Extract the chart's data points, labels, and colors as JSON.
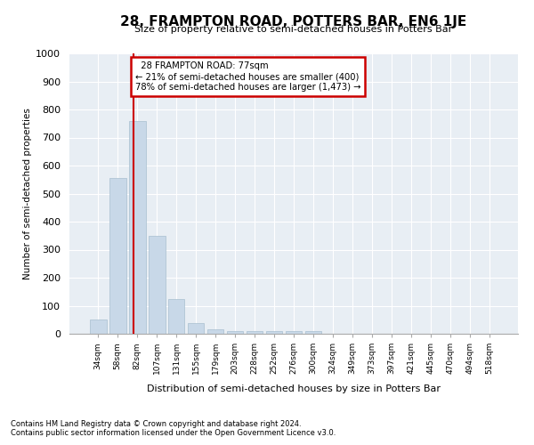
{
  "title": "28, FRAMPTON ROAD, POTTERS BAR, EN6 1JE",
  "subtitle": "Size of property relative to semi-detached houses in Potters Bar",
  "xlabel": "Distribution of semi-detached houses by size in Potters Bar",
  "ylabel": "Number of semi-detached properties",
  "footnote1": "Contains HM Land Registry data © Crown copyright and database right 2024.",
  "footnote2": "Contains public sector information licensed under the Open Government Licence v3.0.",
  "categories": [
    "34sqm",
    "58sqm",
    "82sqm",
    "107sqm",
    "131sqm",
    "155sqm",
    "179sqm",
    "203sqm",
    "228sqm",
    "252sqm",
    "276sqm",
    "300sqm",
    "324sqm",
    "349sqm",
    "373sqm",
    "397sqm",
    "421sqm",
    "445sqm",
    "470sqm",
    "494sqm",
    "518sqm"
  ],
  "values": [
    50,
    555,
    760,
    350,
    125,
    38,
    17,
    10,
    10,
    10,
    10,
    10,
    0,
    0,
    0,
    0,
    0,
    0,
    0,
    0,
    0
  ],
  "bar_color": "#c8d8e8",
  "bar_edgecolor": "#a8bfd0",
  "bg_color": "#e8eef4",
  "grid_color": "#ffffff",
  "vline_color": "#cc0000",
  "annotation_text": "  28 FRAMPTON ROAD: 77sqm\n← 21% of semi-detached houses are smaller (400)\n78% of semi-detached houses are larger (1,473) →",
  "annotation_box_color": "#cc0000",
  "ylim": [
    0,
    1000
  ],
  "yticks": [
    0,
    100,
    200,
    300,
    400,
    500,
    600,
    700,
    800,
    900,
    1000
  ]
}
